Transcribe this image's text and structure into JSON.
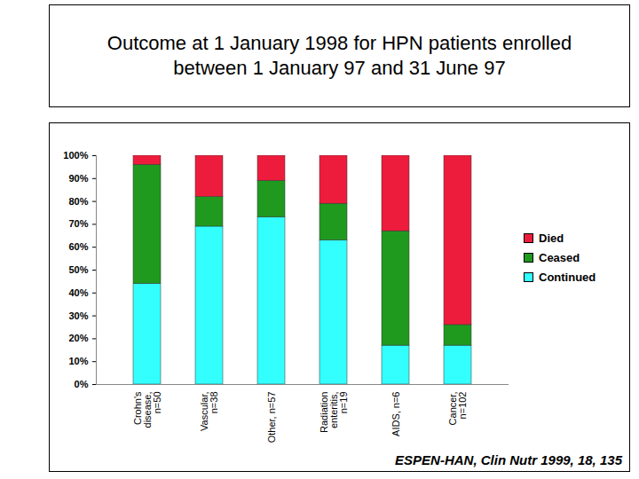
{
  "chart_data": {
    "type": "bar",
    "stacked": true,
    "title": "Outcome at 1 January 1998 for HPN patients enrolled between 1 January 97 and 31 June 97",
    "categories": [
      "Crohn's disease, n=50",
      "Vascular, n=38",
      "Other, n=57",
      "Radiation enteritis, n=19",
      "AIDS, n=6",
      "Cancer, n=102"
    ],
    "series": [
      {
        "name": "Continued",
        "color": "#33ffff",
        "values": [
          44,
          69,
          73,
          63,
          17,
          17
        ]
      },
      {
        "name": "Ceased",
        "color": "#1f9a1f",
        "values": [
          52,
          13,
          16,
          16,
          50,
          9
        ]
      },
      {
        "name": "Died",
        "color": "#ee1c3c",
        "values": [
          4,
          18,
          11,
          21,
          33,
          74
        ]
      }
    ],
    "ylim": [
      0,
      100
    ],
    "yticks": [
      {
        "value": 0,
        "label": "0%"
      },
      {
        "value": 10,
        "label": "10%"
      },
      {
        "value": 20,
        "label": "20%"
      },
      {
        "value": 30,
        "label": "30%"
      },
      {
        "value": 40,
        "label": "40%"
      },
      {
        "value": 50,
        "label": "50%"
      },
      {
        "value": 60,
        "label": "60%"
      },
      {
        "value": 70,
        "label": "70%"
      },
      {
        "value": 80,
        "label": "80%"
      },
      {
        "value": 90,
        "label": "90%"
      },
      {
        "value": 100,
        "label": "100%"
      }
    ],
    "legend": "right",
    "annotations": [
      "ESPEN-HAN, Clin Nutr 1999, 18, 135"
    ]
  }
}
